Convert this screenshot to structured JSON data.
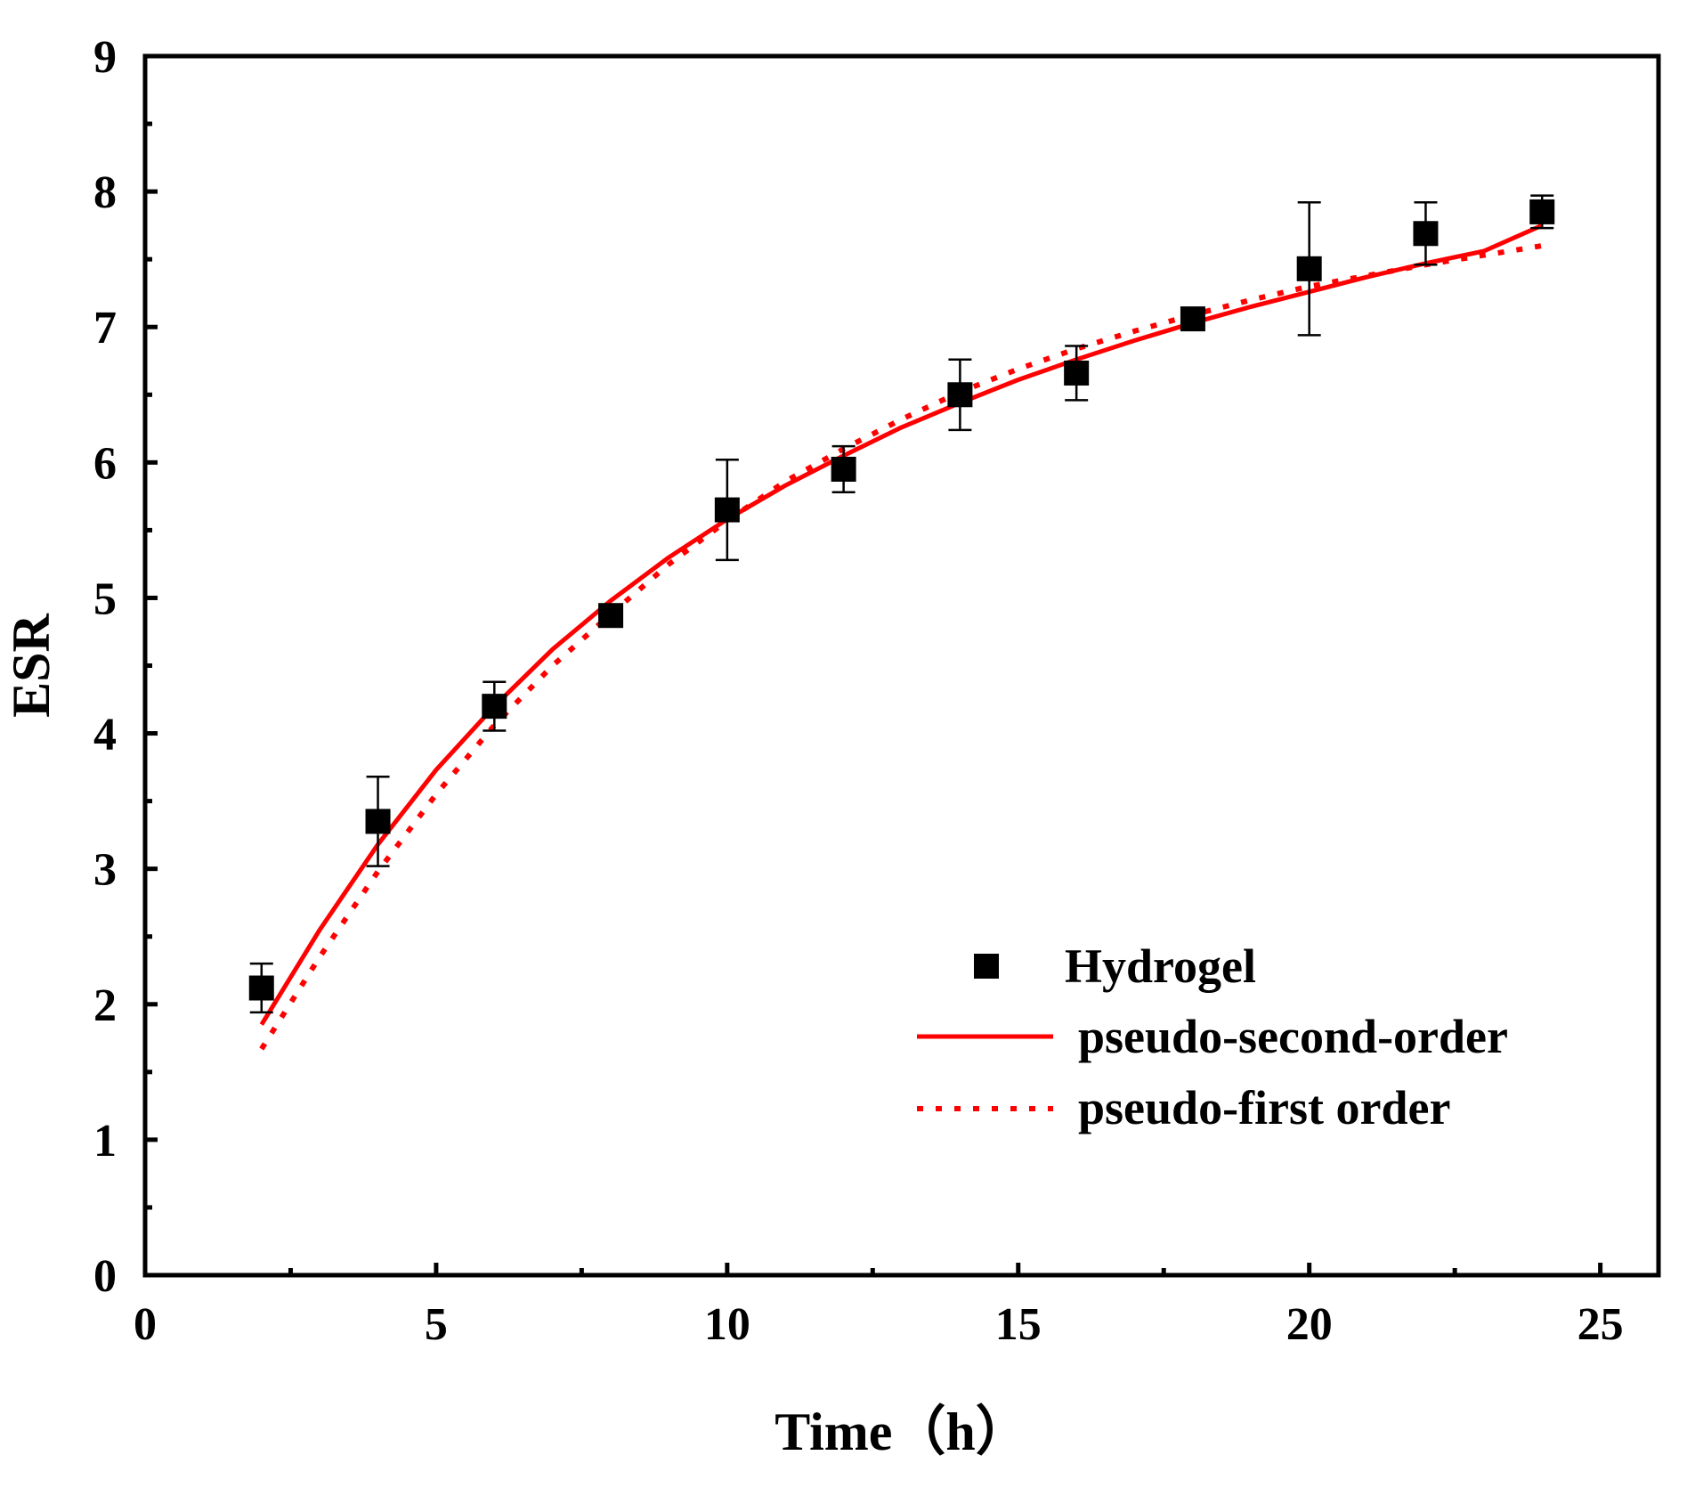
{
  "chart_data": {
    "type": "scatter",
    "title": "",
    "xlabel": "Time（h）",
    "ylabel": "ESR",
    "xlim": [
      0,
      26
    ],
    "ylim": [
      0,
      9
    ],
    "xticks": [
      0,
      5,
      10,
      15,
      20,
      25
    ],
    "yticks": [
      0,
      1,
      2,
      3,
      4,
      5,
      6,
      7,
      8,
      9
    ],
    "x_minor_step": 2.5,
    "y_minor_step": 0.5,
    "grid": false,
    "legend_position": "lower-right",
    "series": [
      {
        "name": "Hydrogel",
        "kind": "points",
        "marker": "square",
        "color": "#000000",
        "x": [
          2,
          4,
          6,
          8,
          10,
          12,
          14,
          16,
          18,
          20,
          22,
          24
        ],
        "y": [
          2.12,
          3.35,
          4.2,
          4.87,
          5.65,
          5.95,
          6.5,
          6.66,
          7.06,
          7.43,
          7.69,
          7.85
        ],
        "yerr": [
          0.18,
          0.33,
          0.18,
          0.05,
          0.37,
          0.17,
          0.26,
          0.2,
          0.05,
          0.49,
          0.23,
          0.12
        ]
      },
      {
        "name": "pseudo-second-order",
        "kind": "line",
        "style": "solid",
        "color": "#ff0000",
        "x": [
          2,
          3,
          4,
          5,
          6,
          7,
          8,
          9,
          10,
          11,
          12,
          13,
          14,
          15,
          16,
          17,
          18,
          19,
          20,
          21,
          22,
          23,
          24
        ],
        "y": [
          1.85,
          2.55,
          3.18,
          3.73,
          4.2,
          4.62,
          4.98,
          5.3,
          5.58,
          5.83,
          6.05,
          6.26,
          6.44,
          6.61,
          6.76,
          6.9,
          7.03,
          7.15,
          7.26,
          7.37,
          7.47,
          7.56,
          7.75
        ]
      },
      {
        "name": "pseudo-first order",
        "kind": "line",
        "style": "dotted",
        "color": "#ff0000",
        "x": [
          2,
          3,
          4,
          5,
          6,
          7,
          8,
          9,
          10,
          11,
          12,
          13,
          14,
          15,
          16,
          17,
          18,
          19,
          20,
          21,
          22,
          23,
          24
        ],
        "y": [
          1.67,
          2.35,
          2.98,
          3.55,
          4.06,
          4.5,
          4.88,
          5.25,
          5.57,
          5.86,
          6.1,
          6.32,
          6.52,
          6.69,
          6.84,
          6.97,
          7.09,
          7.2,
          7.3,
          7.38,
          7.46,
          7.53,
          7.6
        ]
      }
    ]
  }
}
